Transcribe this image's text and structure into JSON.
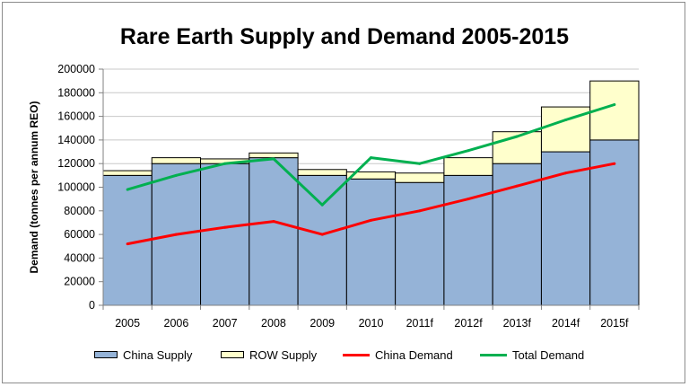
{
  "chart_data": {
    "type": "bar",
    "title": "Rare Earth Supply and Demand 2005-2015",
    "xlabel": "",
    "ylabel": "Demand (tonnes per annum REO)",
    "ylim": [
      0,
      200000
    ],
    "yticks": [
      "0",
      "20000",
      "40000",
      "60000",
      "80000",
      "100000",
      "120000",
      "140000",
      "160000",
      "180000",
      "200000"
    ],
    "categories": [
      "2005",
      "2006",
      "2007",
      "2008",
      "2009",
      "2010",
      "2011f",
      "2012f",
      "2013f",
      "2014f",
      "2015f"
    ],
    "stacked": true,
    "legend_position": "bottom",
    "series": [
      {
        "name": "China Supply",
        "kind": "bar",
        "color": "#95b3d7",
        "values": [
          110000,
          120000,
          120000,
          125000,
          110000,
          107000,
          104000,
          110000,
          120000,
          130000,
          140000
        ]
      },
      {
        "name": "ROW Supply",
        "kind": "bar",
        "color": "#ffffcc",
        "values": [
          4000,
          5000,
          4000,
          4000,
          5000,
          6000,
          8000,
          15000,
          27000,
          38000,
          50000
        ]
      },
      {
        "name": "China Demand",
        "kind": "line",
        "color": "#ff0000",
        "values": [
          52000,
          60000,
          66000,
          71000,
          60000,
          72000,
          80000,
          90000,
          101000,
          112000,
          120000
        ]
      },
      {
        "name": "Total Demand",
        "kind": "line",
        "color": "#00b050",
        "values": [
          98000,
          110000,
          120000,
          124000,
          85000,
          125000,
          120000,
          131000,
          143000,
          157000,
          170000
        ]
      }
    ]
  }
}
